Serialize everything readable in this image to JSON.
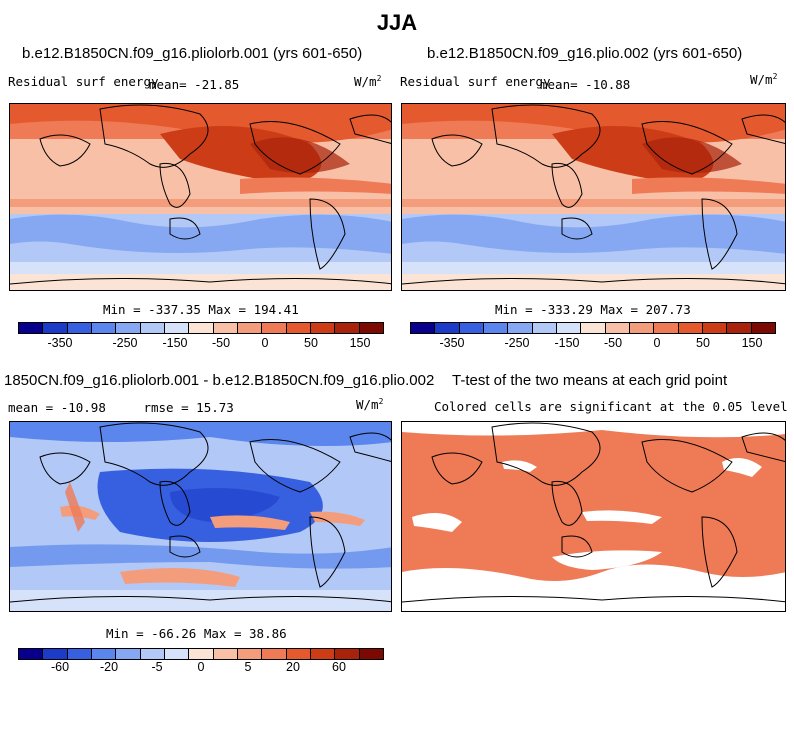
{
  "title": "JJA",
  "panels": [
    {
      "case": "b.e12.B1850CN.f09_g16.pliolorb.001 (yrs 601-650)",
      "variable": "Residual surf energy",
      "stat_label": "mean=",
      "stat_value": "-21.85",
      "units": "W/m",
      "units_exp": "2",
      "min_label": "Min =",
      "min_value": "-337.35",
      "max_label": "Max =",
      "max_value": "194.41"
    },
    {
      "case": "b.e12.B1850CN.f09_g16.plio.002 (yrs 601-650)",
      "variable": "Residual surf energy",
      "stat_label": "mean=",
      "stat_value": "-10.88",
      "units": "W/m",
      "units_exp": "2",
      "min_label": "Min =",
      "min_value": "-333.29",
      "max_label": "Max =",
      "max_value": "207.73"
    },
    {
      "case": "1850CN.f09_g16.pliolorb.001 - b.e12.B1850CN.f09_g16.plio.002",
      "mean_label": "mean =",
      "mean_value": "-10.98",
      "rmse_label": "rmse =",
      "rmse_value": "15.73",
      "units": "W/m",
      "units_exp": "2",
      "min_label": "Min =",
      "min_value": "-66.26",
      "max_label": "Max =",
      "max_value": "38.86"
    },
    {
      "case": "T-test of the two means at each grid point",
      "subtitle": "Colored cells are significant at the 0.05 level"
    }
  ],
  "colorbars": {
    "abs": {
      "colors": [
        "#08008c",
        "#1c3cc8",
        "#3760e0",
        "#5a86ee",
        "#86a8f2",
        "#b2c8f6",
        "#d6e2fa",
        "#fbe3d5",
        "#f8c0a6",
        "#f49d7c",
        "#ee7a56",
        "#e5592f",
        "#cc3c16",
        "#a8220c",
        "#7c0a02"
      ],
      "tick_labels": [
        "-350",
        "-250",
        "-150",
        "-50",
        "0",
        "50",
        "150"
      ]
    },
    "diff": {
      "colors": [
        "#08008c",
        "#1c3cc8",
        "#3760e0",
        "#5a86ee",
        "#86a8f2",
        "#b2c8f6",
        "#d6e2fa",
        "#fbe3d5",
        "#f8c0a6",
        "#f49d7c",
        "#ee7a56",
        "#e5592f",
        "#cc3c16",
        "#a8220c",
        "#7c0a02"
      ],
      "tick_labels": [
        "-60",
        "-20",
        "-5",
        "0",
        "5",
        "20",
        "60"
      ]
    }
  },
  "chart_data": [
    {
      "type": "heatmap",
      "title": "b.e12.B1850CN.f09_g16.pliolorb.001 (yrs 601-650)",
      "variable": "Residual surf energy",
      "units": "W/m2",
      "season": "JJA",
      "mean": -21.85,
      "min": -337.35,
      "max": 194.41,
      "contour_levels": [
        -350,
        -300,
        -250,
        -200,
        -150,
        -100,
        -50,
        0,
        25,
        50,
        100,
        150,
        200
      ]
    },
    {
      "type": "heatmap",
      "title": "b.e12.B1850CN.f09_g16.plio.002 (yrs 601-650)",
      "variable": "Residual surf energy",
      "units": "W/m2",
      "season": "JJA",
      "mean": -10.88,
      "min": -333.29,
      "max": 207.73,
      "contour_levels": [
        -350,
        -300,
        -250,
        -200,
        -150,
        -100,
        -50,
        0,
        25,
        50,
        100,
        150,
        200
      ]
    },
    {
      "type": "heatmap",
      "title": "pliolorb.001 - plio.002",
      "units": "W/m2",
      "mean": -10.98,
      "rmse": 15.73,
      "min": -66.26,
      "max": 38.86,
      "contour_levels": [
        -60,
        -40,
        -20,
        -10,
        -5,
        -2,
        0,
        2,
        5,
        10,
        20,
        40,
        60
      ]
    },
    {
      "type": "heatmap",
      "title": "T-test of the two means at each grid point",
      "significance_level": 0.05
    }
  ]
}
